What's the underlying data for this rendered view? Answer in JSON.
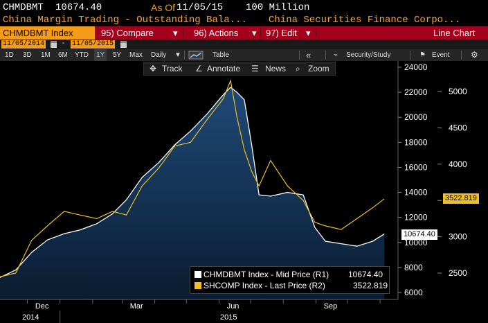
{
  "header": {
    "ticker": "CHMDBMT",
    "last_value": "10674.40",
    "asof_label": "As Of",
    "asof_date": "11/05/15",
    "units": "100 Million",
    "description": "China Margin Trading - Outstanding Bala...",
    "source": "China Securities Finance Corpo..."
  },
  "menubar": {
    "ticker_button": "CHMDBMT Index",
    "compare": "95) Compare",
    "actions": "96) Actions",
    "edit": "97) Edit",
    "chart_type": "Line Chart"
  },
  "datebar": {
    "start_date": "11/05/2014",
    "dash": "-",
    "end_date": "11/05/2015"
  },
  "toolbar": {
    "periods": [
      "1D",
      "3D",
      "1M",
      "6M",
      "YTD",
      "1Y",
      "5Y",
      "Max"
    ],
    "active_period": "1Y",
    "frequency": "Daily",
    "table": "Table",
    "back": "«",
    "security_study": "Security/Study",
    "event": "Event"
  },
  "chart_tools": {
    "track": "Track",
    "annotate": "Annotate",
    "news": "News",
    "zoom": "Zoom"
  },
  "legend": {
    "items": [
      {
        "label": "CHMDBMT Index - Mid Price (R1)",
        "value": "10674.40",
        "color": "#ffffff"
      },
      {
        "label": "SHCOMP Index - Last Price (R2)",
        "value": "3522.819",
        "color": "#f0c020"
      }
    ]
  },
  "tags": {
    "shcomp_last": "3522.819",
    "chmdbmt_last": "10674.40"
  },
  "colors": {
    "accent_orange": "#f39c19",
    "menu_red": "#a2001c",
    "area_top": "#1f4a78",
    "area_bottom": "#0a1c30",
    "shcomp_line": "#f0c020"
  },
  "chart_data": {
    "type": "line",
    "x_ticks": [
      "Dec",
      "Mar",
      "Jun",
      "Sep"
    ],
    "x_years": [
      "2014",
      "2015"
    ],
    "y_left_ticks": [
      "24000",
      "22000",
      "20000",
      "18000",
      "16000",
      "14000",
      "12000",
      "10000",
      "8000",
      "6000"
    ],
    "y_right_ticks": [
      "5000",
      "4500",
      "4000",
      "3500",
      "3000",
      "2500"
    ],
    "ylim_left": [
      6000,
      24000
    ],
    "ylim_right": [
      2250,
      5250
    ],
    "series": [
      {
        "name": "CHMDBMT Index - Mid Price (R1)",
        "axis": "left",
        "style": "area",
        "x": [
          "2014-11-05",
          "2014-11-20",
          "2014-12-05",
          "2014-12-20",
          "2015-01-05",
          "2015-01-20",
          "2015-02-05",
          "2015-02-20",
          "2015-03-05",
          "2015-03-20",
          "2015-04-05",
          "2015-04-20",
          "2015-05-05",
          "2015-05-20",
          "2015-06-05",
          "2015-06-12",
          "2015-06-18",
          "2015-06-25",
          "2015-07-02",
          "2015-07-09",
          "2015-07-20",
          "2015-08-05",
          "2015-08-20",
          "2015-08-31",
          "2015-09-10",
          "2015-09-25",
          "2015-10-10",
          "2015-10-25",
          "2015-11-05"
        ],
        "values": [
          7200,
          7800,
          9200,
          10200,
          10700,
          11000,
          11500,
          12300,
          13400,
          15200,
          16400,
          17800,
          18900,
          20200,
          21800,
          22400,
          22000,
          21400,
          17800,
          13800,
          13700,
          14000,
          13800,
          11200,
          10100,
          9900,
          9700,
          10100,
          10674
        ]
      },
      {
        "name": "SHCOMP Index - Last Price (R2)",
        "axis": "right",
        "style": "line",
        "x": [
          "2014-11-05",
          "2014-11-20",
          "2014-12-05",
          "2014-12-20",
          "2015-01-05",
          "2015-01-20",
          "2015-02-05",
          "2015-02-20",
          "2015-03-05",
          "2015-03-20",
          "2015-04-05",
          "2015-04-20",
          "2015-05-05",
          "2015-05-20",
          "2015-06-05",
          "2015-06-12",
          "2015-06-18",
          "2015-06-25",
          "2015-07-02",
          "2015-07-09",
          "2015-07-20",
          "2015-08-05",
          "2015-08-20",
          "2015-08-31",
          "2015-09-10",
          "2015-09-25",
          "2015-10-10",
          "2015-10-25",
          "2015-11-05"
        ],
        "values": [
          2450,
          2500,
          2950,
          3150,
          3350,
          3300,
          3250,
          3350,
          3300,
          3700,
          3950,
          4250,
          4300,
          4600,
          4900,
          5150,
          4650,
          4200,
          3900,
          3700,
          4050,
          3700,
          3500,
          3200,
          3150,
          3100,
          3250,
          3400,
          3522.819
        ]
      }
    ],
    "legend_position": "bottom-right",
    "grid": false
  }
}
